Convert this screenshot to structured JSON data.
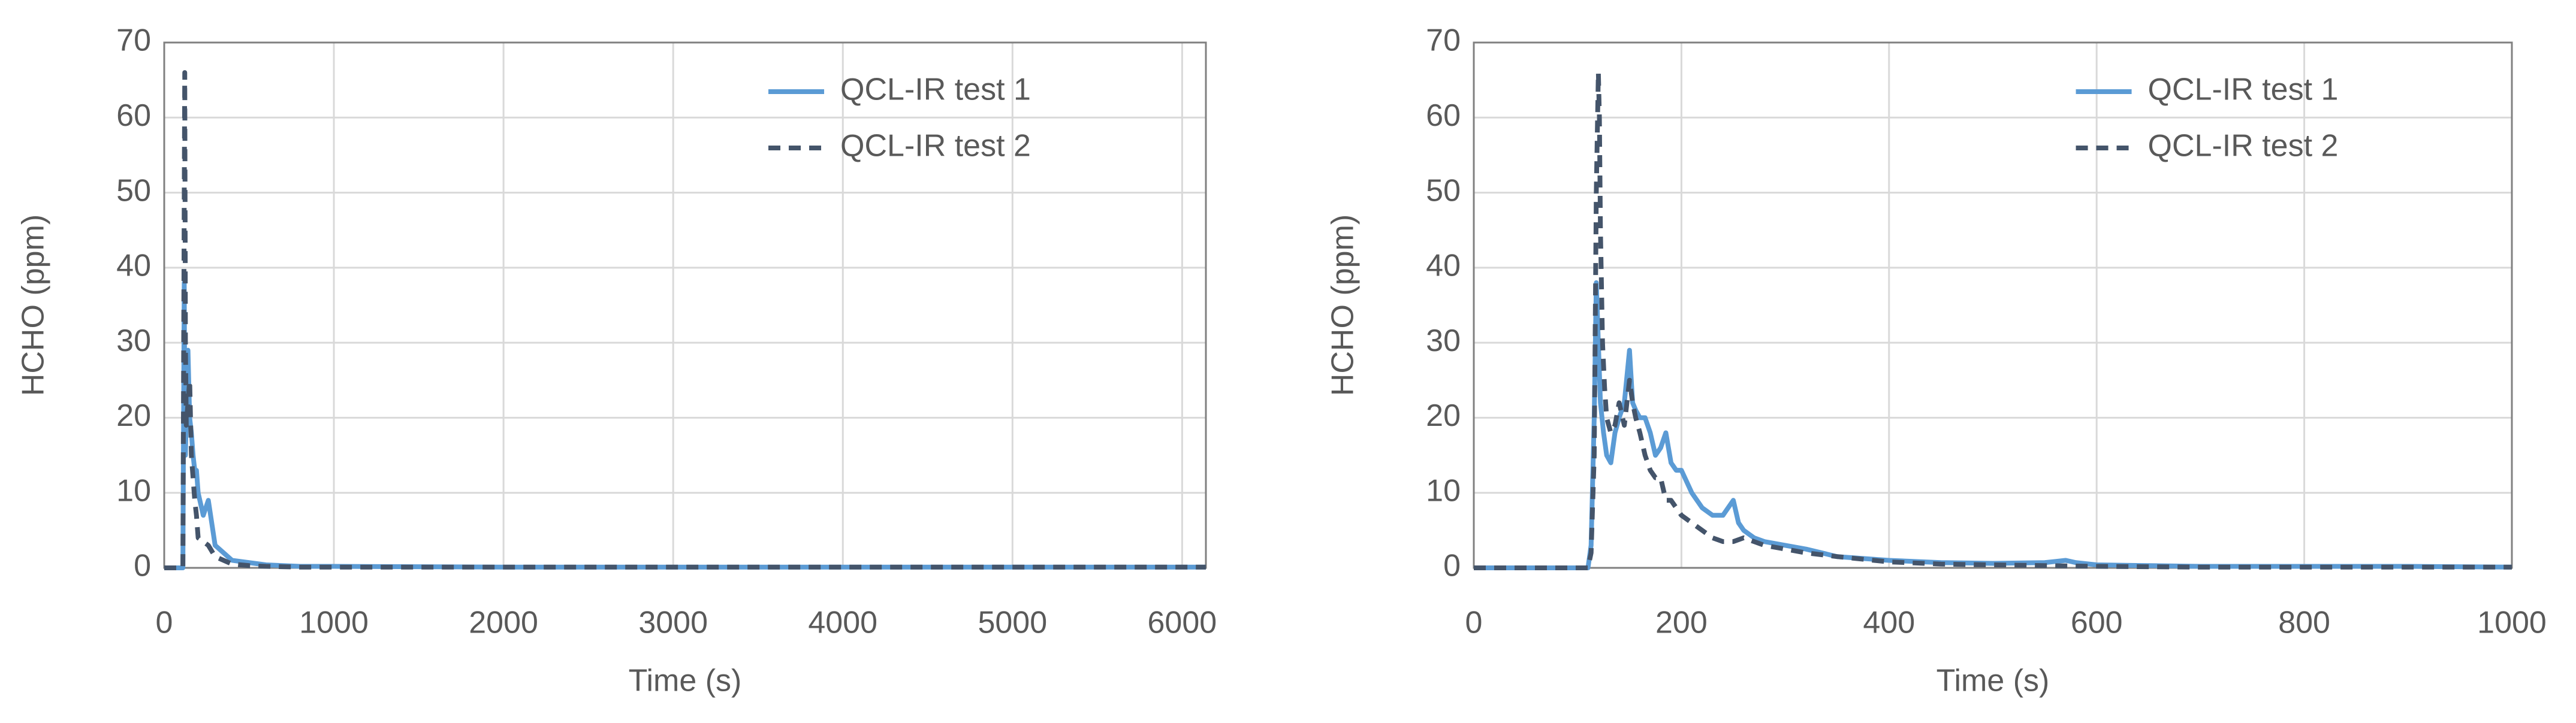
{
  "chart_data": [
    {
      "type": "line",
      "xlabel": "Time (s)",
      "ylabel": "HCHO (ppm)",
      "xlim": [
        0,
        6140
      ],
      "xticks": [
        0,
        1000,
        2000,
        3000,
        4000,
        5000,
        6000
      ],
      "ylim": [
        0,
        70
      ],
      "yticks": [
        0,
        10,
        20,
        30,
        40,
        50,
        60,
        70
      ],
      "grid": true,
      "legend": "top-right",
      "series": [
        {
          "name": "QCL-IR test 1",
          "color": "#5b9bd5",
          "dash": false,
          "x": [
            0,
            100,
            110,
            118,
            121,
            125,
            130,
            140,
            150,
            160,
            170,
            180,
            190,
            200,
            230,
            260,
            300,
            400,
            500,
            600,
            800,
            1000,
            2000,
            3000,
            4000,
            5000,
            6140
          ],
          "values": [
            0,
            0,
            0,
            38,
            22,
            15,
            20,
            29,
            20,
            18,
            15,
            13,
            13,
            10,
            7,
            9,
            3,
            1,
            0.7,
            0.4,
            0.2,
            0.2,
            0.1,
            0.1,
            0.1,
            0.1,
            0.1
          ]
        },
        {
          "name": "QCL-IR test 2",
          "color": "#44546a",
          "dash": true,
          "x": [
            0,
            100,
            110,
            118,
            121,
            125,
            130,
            140,
            150,
            160,
            170,
            180,
            190,
            200,
            230,
            260,
            300,
            400,
            500,
            600,
            800,
            1000,
            2000,
            3000,
            4000,
            5000,
            6140
          ],
          "values": [
            0,
            0,
            0,
            50,
            66,
            30,
            19,
            22,
            25,
            15,
            12,
            9,
            7,
            4,
            3.5,
            3,
            1.5,
            0.5,
            0.3,
            0.2,
            0.1,
            0.1,
            0.1,
            0.1,
            0.1,
            0.1,
            0.1
          ]
        }
      ]
    },
    {
      "type": "line",
      "xlabel": "Time (s)",
      "ylabel": "HCHO (ppm)",
      "xlim": [
        0,
        1000
      ],
      "xticks": [
        0,
        200,
        400,
        600,
        800,
        1000
      ],
      "ylim": [
        0,
        70
      ],
      "yticks": [
        0,
        10,
        20,
        30,
        40,
        50,
        60,
        70
      ],
      "grid": true,
      "legend": "top-right",
      "series": [
        {
          "name": "QCL-IR test 1",
          "color": "#5b9bd5",
          "dash": false,
          "x": [
            0,
            100,
            110,
            113,
            116,
            118,
            120,
            122,
            125,
            128,
            132,
            136,
            140,
            145,
            150,
            153,
            156,
            160,
            165,
            170,
            175,
            180,
            185,
            190,
            195,
            200,
            210,
            220,
            230,
            240,
            245,
            250,
            255,
            260,
            270,
            280,
            300,
            320,
            350,
            400,
            450,
            500,
            550,
            570,
            580,
            600,
            650,
            700,
            800,
            900,
            1000
          ],
          "values": [
            0,
            0,
            0,
            3,
            20,
            38,
            30,
            22,
            18,
            15,
            14,
            18,
            20,
            22,
            29,
            22,
            21,
            20,
            20,
            18,
            15,
            16,
            18,
            14,
            13,
            13,
            10,
            8,
            7,
            7,
            8,
            9,
            6,
            5,
            4,
            3.5,
            3,
            2.5,
            1.5,
            1,
            0.7,
            0.6,
            0.7,
            1,
            0.7,
            0.4,
            0.3,
            0.2,
            0.2,
            0.2,
            0.1
          ]
        },
        {
          "name": "QCL-IR test 2",
          "color": "#44546a",
          "dash": true,
          "x": [
            0,
            100,
            110,
            113,
            116,
            118,
            120,
            121,
            122,
            124,
            126,
            128,
            132,
            136,
            140,
            145,
            150,
            153,
            156,
            160,
            165,
            170,
            175,
            180,
            185,
            190,
            200,
            210,
            220,
            230,
            240,
            250,
            260,
            270,
            280,
            300,
            320,
            350,
            400,
            450,
            500,
            550,
            600,
            700,
            800,
            900,
            1000
          ],
          "values": [
            0,
            0,
            0,
            2,
            15,
            50,
            66,
            60,
            45,
            30,
            24,
            20,
            18,
            19,
            22,
            19,
            25,
            22,
            20,
            18,
            15,
            13,
            12,
            12,
            9,
            9,
            7,
            6,
            5,
            4,
            3.5,
            3.5,
            4,
            3.5,
            3,
            2.5,
            2,
            1.5,
            0.8,
            0.5,
            0.4,
            0.3,
            0.2,
            0.1,
            0.1,
            0.1,
            0.1
          ]
        }
      ]
    }
  ]
}
